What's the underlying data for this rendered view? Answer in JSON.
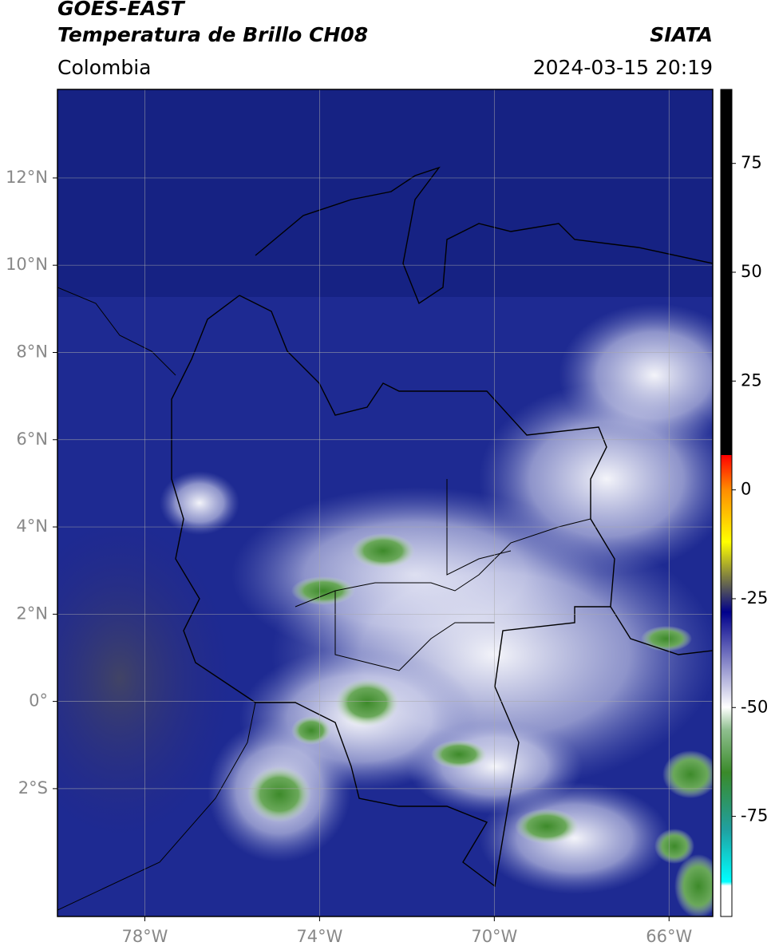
{
  "header": {
    "satellite": "GOES-EAST",
    "product": "Temperatura de Brillo CH08",
    "source": "SIATA",
    "region": "Colombia",
    "datetime": "2024-03-15 20:19"
  },
  "map": {
    "xlim": [
      -80,
      -65
    ],
    "ylim": [
      -4.93,
      14.03
    ],
    "xticks": [
      {
        "value": -78,
        "label": "78°W"
      },
      {
        "value": -74,
        "label": "74°W"
      },
      {
        "value": -70,
        "label": "70°W"
      },
      {
        "value": -66,
        "label": "66°W"
      }
    ],
    "yticks": [
      {
        "value": 12,
        "label": "12°N"
      },
      {
        "value": 10,
        "label": "10°N"
      },
      {
        "value": 8,
        "label": "8°N"
      },
      {
        "value": 6,
        "label": "6°N"
      },
      {
        "value": 4,
        "label": "4°N"
      },
      {
        "value": 2,
        "label": "2°N"
      },
      {
        "value": 0,
        "label": "0°"
      },
      {
        "value": -2,
        "label": "2°S"
      }
    ],
    "grid": true
  },
  "colorbar": {
    "lim": [
      -98,
      92
    ],
    "ticks": [
      75,
      50,
      25,
      0,
      -25,
      -50,
      -75
    ]
  }
}
